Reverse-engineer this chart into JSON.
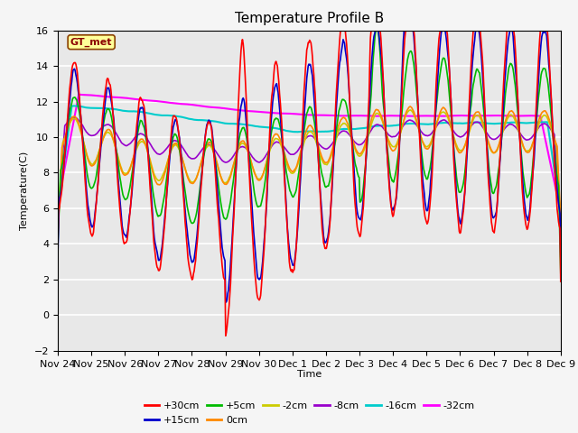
{
  "title": "Temperature Profile B",
  "xlabel": "Time",
  "ylabel": "Temperature(C)",
  "ylim": [
    -2,
    16
  ],
  "yticks": [
    -2,
    0,
    2,
    4,
    6,
    8,
    10,
    12,
    14,
    16
  ],
  "xtick_labels": [
    "Nov 24",
    "Nov 25",
    "Nov 26",
    "Nov 27",
    "Nov 28",
    "Nov 29",
    "Nov 30",
    "Dec 1",
    "Dec 2",
    "Dec 3",
    "Dec 4",
    "Dec 5",
    "Dec 6",
    "Dec 7",
    "Dec 8",
    "Dec 9"
  ],
  "series": [
    {
      "label": "+30cm",
      "color": "#FF0000"
    },
    {
      "label": "+15cm",
      "color": "#0000CC"
    },
    {
      "label": "+5cm",
      "color": "#00BB00"
    },
    {
      "label": "0cm",
      "color": "#FF8800"
    },
    {
      "label": "-2cm",
      "color": "#CCCC00"
    },
    {
      "label": "-8cm",
      "color": "#9900CC"
    },
    {
      "label": "-16cm",
      "color": "#00CCCC"
    },
    {
      "label": "-32cm",
      "color": "#FF00FF"
    }
  ],
  "background_color": "#E8E8E8",
  "grid_color": "#FFFFFF",
  "title_fontsize": 11,
  "axis_fontsize": 8,
  "legend_fontsize": 8
}
